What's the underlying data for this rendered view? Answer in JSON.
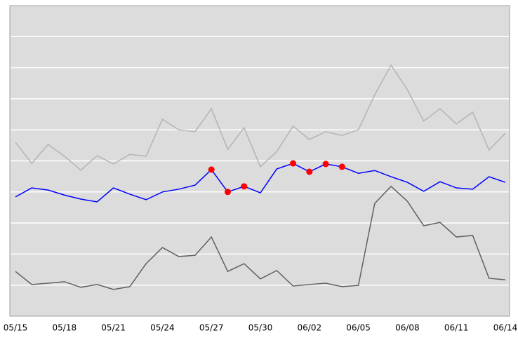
{
  "chart_data": {
    "type": "line",
    "categories": [
      "05/15",
      null,
      null,
      "05/18",
      null,
      null,
      "05/21",
      null,
      null,
      "05/24",
      null,
      null,
      "05/27",
      null,
      null,
      "05/30",
      null,
      null,
      "06/02",
      null,
      null,
      "06/05",
      null,
      null,
      "06/08",
      null,
      null,
      "06/11",
      null,
      null,
      "06/14"
    ],
    "ylim": [
      0,
      10
    ],
    "yticks": [
      1,
      2,
      3,
      4,
      5,
      6,
      7,
      8,
      9
    ],
    "grid": true,
    "series": [
      {
        "color": "#b4b4b4",
        "style": "line",
        "values": [
          5.6,
          4.92,
          5.53,
          5.15,
          4.7,
          5.17,
          4.9,
          5.21,
          5.15,
          6.34,
          6.0,
          5.94,
          6.68,
          5.37,
          6.07,
          4.81,
          5.3,
          6.12,
          5.69,
          5.94,
          5.82,
          6.0,
          7.13,
          8.08,
          7.29,
          6.28,
          6.68,
          6.19,
          6.57,
          5.35,
          5.89
        ]
      },
      {
        "color": "#606060",
        "style": "line",
        "values": [
          1.44,
          1.02,
          1.06,
          1.11,
          0.93,
          1.02,
          0.86,
          0.95,
          1.69,
          2.21,
          1.92,
          1.96,
          2.55,
          1.44,
          1.69,
          1.2,
          1.47,
          0.97,
          1.02,
          1.06,
          0.95,
          0.99,
          3.63,
          4.18,
          3.7,
          2.91,
          3.02,
          2.55,
          2.6,
          1.22,
          1.17
        ]
      },
      {
        "color": "#0000ff",
        "style": "line",
        "values": [
          3.84,
          4.13,
          4.06,
          3.9,
          3.77,
          3.68,
          4.13,
          3.93,
          3.75,
          4.0,
          4.09,
          4.22,
          4.72,
          4.0,
          4.18,
          3.97,
          4.74,
          4.92,
          4.65,
          4.9,
          4.81,
          4.6,
          4.69,
          4.49,
          4.31,
          4.02,
          4.33,
          4.13,
          4.09,
          4.49,
          4.31
        ]
      },
      {
        "color": "#ff0000",
        "style": "markers",
        "values": [
          null,
          null,
          null,
          null,
          null,
          null,
          null,
          null,
          null,
          null,
          null,
          null,
          4.72,
          4.0,
          4.18,
          null,
          null,
          4.92,
          4.65,
          4.9,
          4.81,
          null,
          null,
          null,
          null,
          null,
          null,
          null,
          null,
          null,
          null
        ]
      }
    ]
  }
}
